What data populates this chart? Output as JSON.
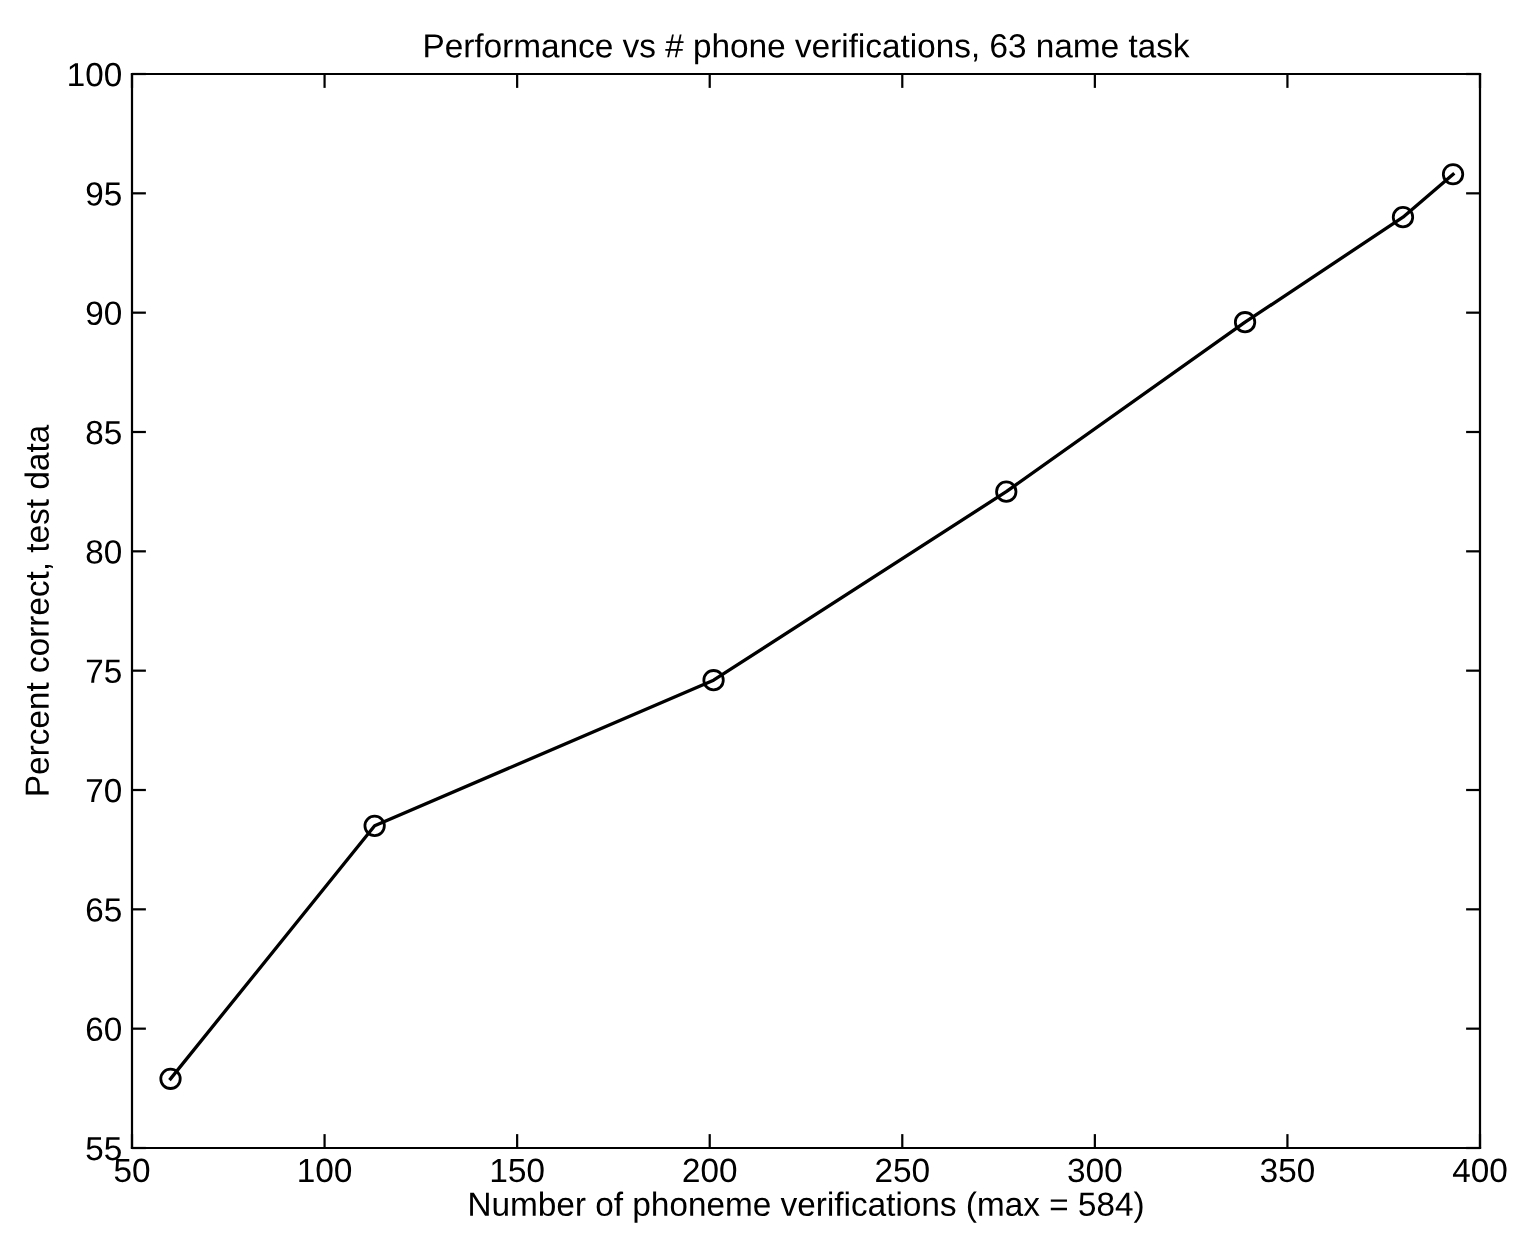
{
  "chart_data": {
    "type": "line",
    "title": "Performance vs # phone verifications, 63 name task",
    "xlabel": "Number of phoneme verifications (max = 584)",
    "ylabel": "Percent correct, test data",
    "x": [
      60,
      113,
      201,
      277,
      339,
      380,
      393
    ],
    "series": [
      {
        "color": "#000000",
        "values": [
          57.9,
          68.5,
          74.6,
          82.5,
          89.6,
          94.0,
          95.8
        ]
      }
    ],
    "xlim": [
      50,
      400
    ],
    "ylim": [
      55,
      100
    ],
    "xticks": [
      50,
      100,
      150,
      200,
      250,
      300,
      350,
      400
    ],
    "yticks": [
      55,
      60,
      65,
      70,
      75,
      80,
      85,
      90,
      95,
      100
    ],
    "marker": "circle",
    "line_style": "solid",
    "grid": false,
    "legend": false
  }
}
